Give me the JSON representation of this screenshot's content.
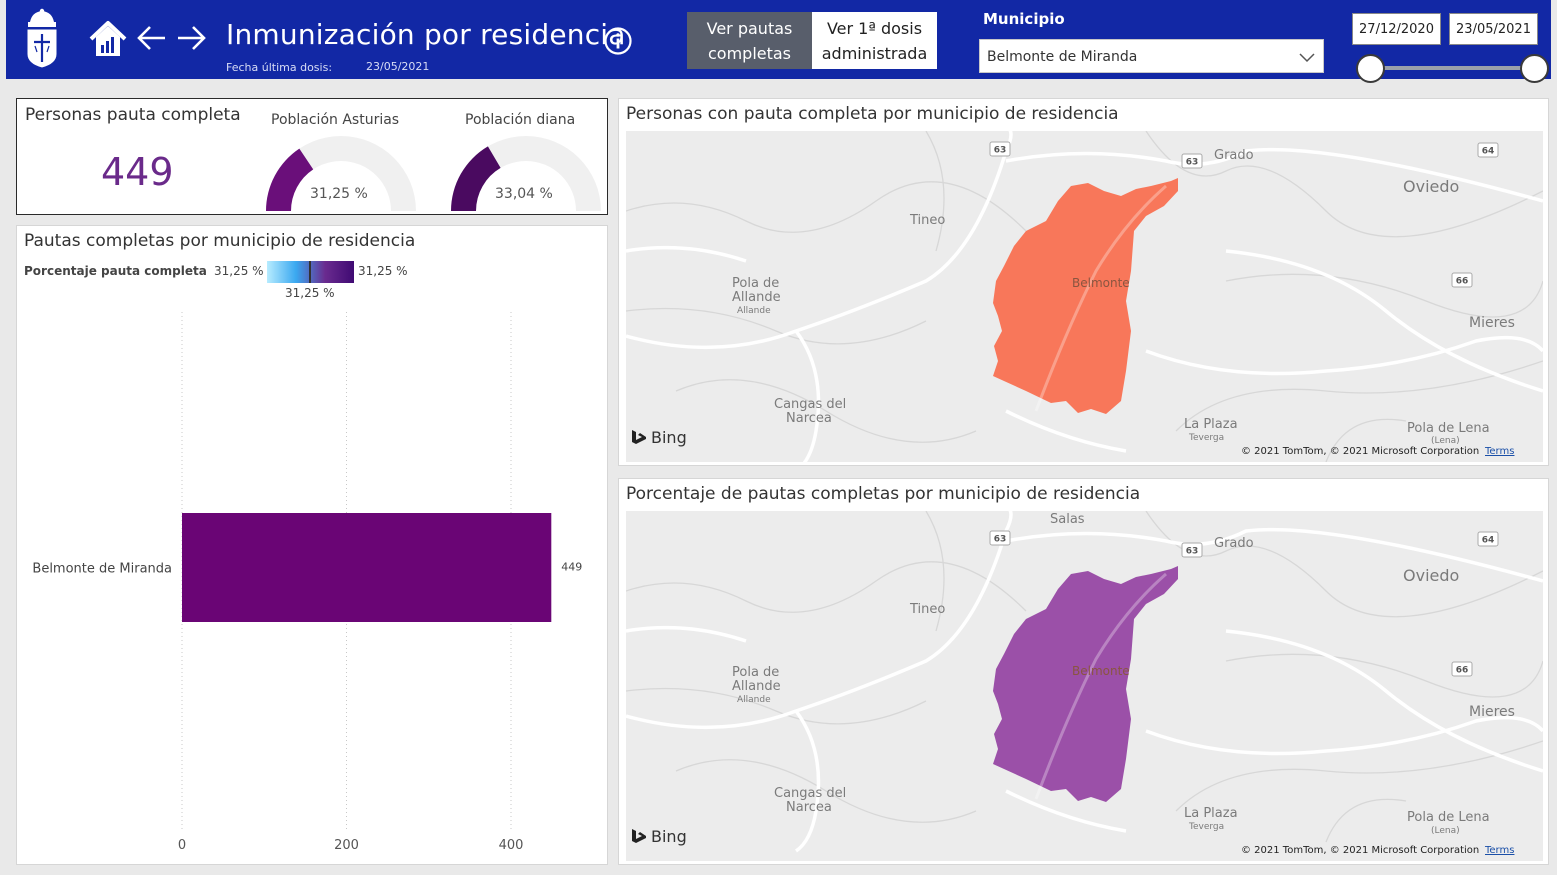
{
  "header": {
    "title": "Inmunización por residencia",
    "last_dose_label": "Fecha última dosis:",
    "last_dose_value": "23/05/2021",
    "btn_full": [
      "Ver pautas",
      "completas"
    ],
    "btn_first": [
      "Ver 1ª dosis",
      "administrada"
    ],
    "municipio_label": "Municipio",
    "municipio_value": "Belmonte de Miranda",
    "date_start": "27/12/2020",
    "date_end": "23/05/2021",
    "icons": [
      "crest-icon",
      "home-icon",
      "back-arrow-icon",
      "forward-arrow-icon",
      "info-icon",
      "chevron-down-icon"
    ],
    "colors": {
      "bar": "#1228a5",
      "active_button": "#585e6b"
    }
  },
  "kpi": {
    "title": "Personas pauta completa",
    "value": "449",
    "value_color": "#6a2a8a",
    "gauges": [
      {
        "label": "Población Asturias",
        "value_label": "31,25 %",
        "fraction": 0.3125,
        "color": "#6a0f7a"
      },
      {
        "label": "Población diana",
        "value_label": "33,04 %",
        "fraction": 0.3304,
        "color": "#4a0a60"
      }
    ]
  },
  "bar_panel": {
    "title": "Pautas completas por municipio de residencia",
    "legend_title": "Porcentaje pauta completa",
    "legend_min": "31,25 %",
    "legend_max": "31,25 %",
    "legend_mid": "31,25 %"
  },
  "chart_data": {
    "type": "bar",
    "orientation": "horizontal",
    "categories": [
      "Belmonte de Miranda"
    ],
    "values": [
      449
    ],
    "data_labels": [
      "449"
    ],
    "xlim": [
      0,
      450
    ],
    "xticks": [
      0,
      200,
      400
    ],
    "grid": true,
    "color": "#6a0575"
  },
  "map1": {
    "title": "Personas con pauta completa por municipio de residencia",
    "region_color": "#f8775a",
    "region_label": "Belmonte",
    "towns": [
      "Grado",
      "Oviedo",
      "Tineo",
      "Pola de",
      "Allande",
      "Allande",
      "Mieres",
      "Cangas del",
      "Narcea",
      "La Plaza",
      "Teverga",
      "Pola de Lena",
      "(Lena)"
    ],
    "roads": [
      "63",
      "63",
      "64",
      "66"
    ],
    "brand": "Bing",
    "copyright": "© 2021 TomTom, © 2021 Microsoft Corporation",
    "terms": "Terms"
  },
  "map2": {
    "title": "Porcentaje de pautas completas por municipio de residencia",
    "region_color": "#9b50a8",
    "region_label": "Belmonte",
    "towns": [
      "Salas",
      "Grado",
      "Oviedo",
      "Tineo",
      "Pola de",
      "Allande",
      "Allande",
      "Mieres",
      "Cangas del",
      "Narcea",
      "La Plaza",
      "Teverga",
      "Pola de Lena",
      "(Lena)"
    ],
    "roads": [
      "63",
      "63",
      "64",
      "66"
    ],
    "brand": "Bing",
    "copyright": "© 2021 TomTom, © 2021 Microsoft Corporation",
    "terms": "Terms"
  }
}
